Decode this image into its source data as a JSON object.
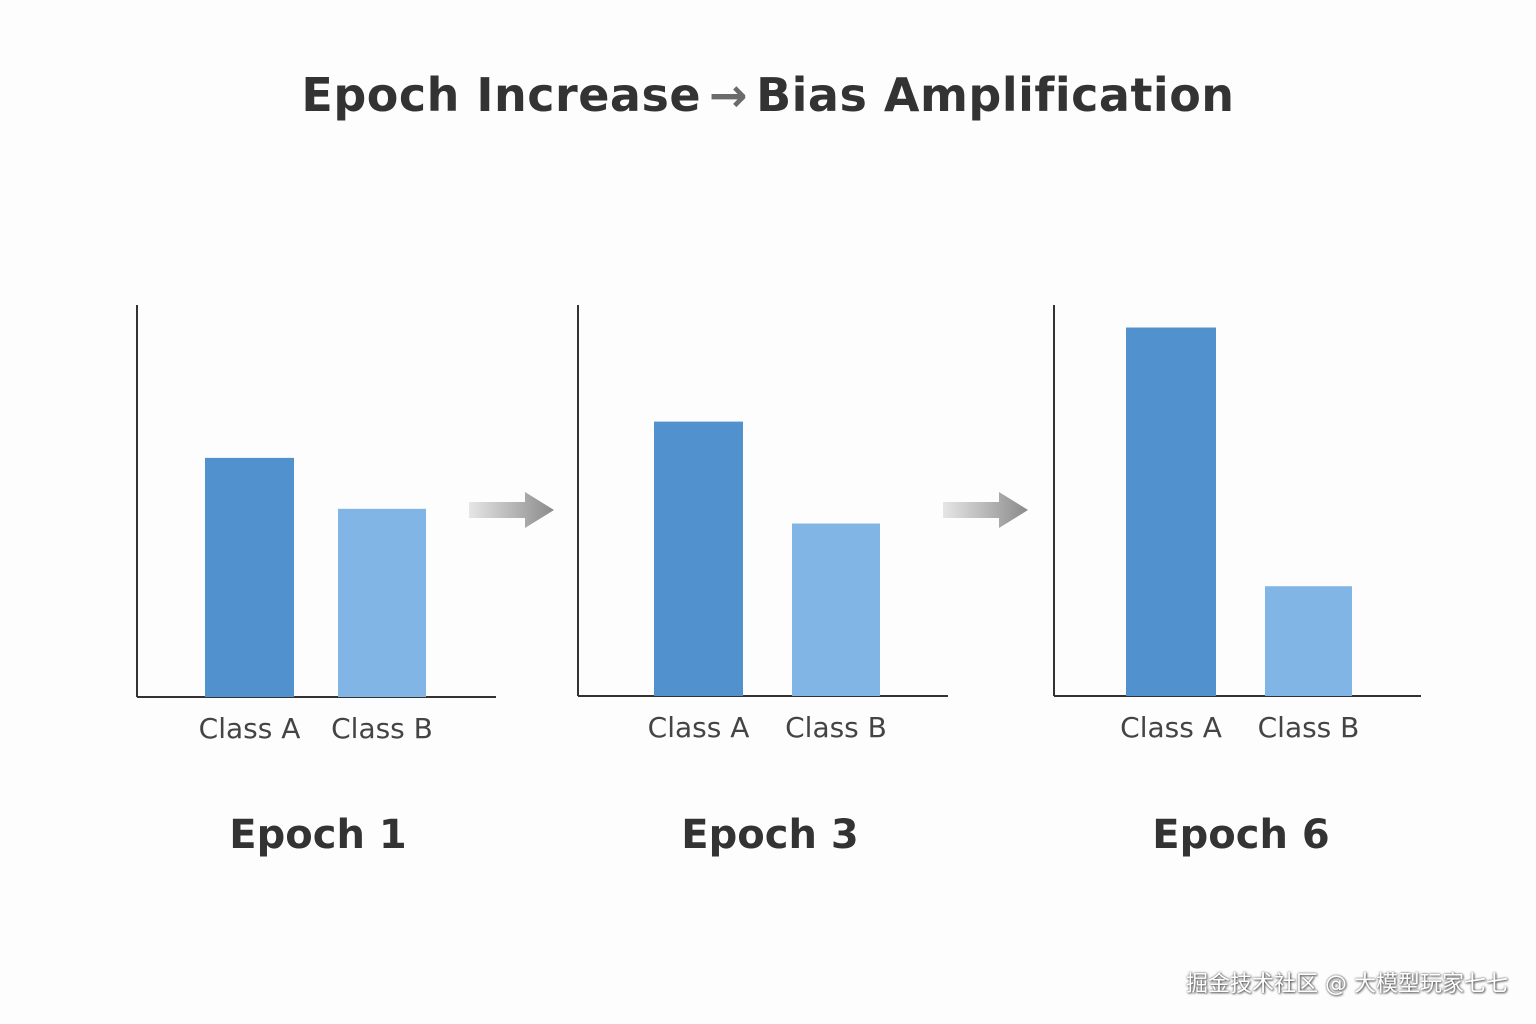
{
  "title": {
    "left": "Epoch Increase",
    "arrow": "→",
    "right": "Bias Amplification"
  },
  "colors": {
    "class_a": "#5191cd",
    "class_b": "#80b5e5",
    "axis": "#333333",
    "arrow": "#9a9a9a"
  },
  "chart_data": [
    {
      "type": "bar",
      "categories": [
        "Class A",
        "Class B"
      ],
      "values": [
        61,
        48
      ],
      "title": "Epoch 1",
      "ylim": [
        0,
        100
      ],
      "grid": false
    },
    {
      "type": "bar",
      "categories": [
        "Class A",
        "Class B"
      ],
      "values": [
        70,
        44
      ],
      "title": "Epoch 3",
      "ylim": [
        0,
        100
      ],
      "grid": false
    },
    {
      "type": "bar",
      "categories": [
        "Class A",
        "Class B"
      ],
      "values": [
        94,
        28
      ],
      "title": "Epoch 6",
      "ylim": [
        0,
        100
      ],
      "grid": false
    }
  ],
  "watermark": "掘金技术社区 @ 大模型玩家七七"
}
